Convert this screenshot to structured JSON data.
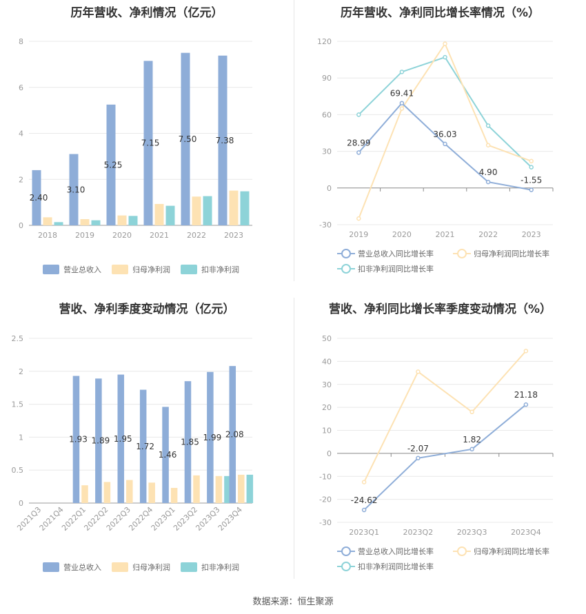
{
  "source_label": "数据来源：恒生聚源",
  "chart_data": [
    {
      "id": "annual-revenue-profit",
      "type": "bar",
      "title": "历年营收、净利情况（亿元）",
      "categories": [
        "2018",
        "2019",
        "2020",
        "2021",
        "2022",
        "2023"
      ],
      "ylim": [
        0,
        8
      ],
      "yticks": [
        0,
        2,
        4,
        6,
        8
      ],
      "series": [
        {
          "name": "营业总收入",
          "color": "#8eadd8",
          "values": [
            2.4,
            3.1,
            5.25,
            7.15,
            7.5,
            7.38
          ]
        },
        {
          "name": "归母净利润",
          "color": "#fde2b3",
          "values": [
            0.35,
            0.27,
            0.43,
            0.93,
            1.25,
            1.51
          ]
        },
        {
          "name": "扣非净利润",
          "color": "#8dd3d8",
          "values": [
            0.14,
            0.22,
            0.41,
            0.85,
            1.27,
            1.48
          ]
        }
      ],
      "data_labels": [
        "2.40",
        "3.10",
        "5.25",
        "7.15",
        "7.50",
        "7.38"
      ],
      "legend_position": "bottom",
      "grid": true
    },
    {
      "id": "annual-growth",
      "type": "line",
      "title": "历年营收、净利同比增长率情况（%）",
      "categories": [
        "2019",
        "2020",
        "2021",
        "2022",
        "2023"
      ],
      "ylim": [
        -30,
        120
      ],
      "yticks": [
        -30,
        0,
        30,
        60,
        90,
        120
      ],
      "series": [
        {
          "name": "营业总收入同比增长率",
          "color": "#8eadd8",
          "values": [
            28.99,
            69.41,
            36.03,
            4.9,
            -1.55
          ]
        },
        {
          "name": "归母净利润同比增长率",
          "color": "#fde2b3",
          "values": [
            -25.0,
            65.0,
            118.0,
            35.0,
            22.0
          ]
        },
        {
          "name": "扣非净利润同比增长率",
          "color": "#8dd3d8",
          "values": [
            60.0,
            95.0,
            107.0,
            51.0,
            17.0
          ]
        }
      ],
      "data_labels": [
        "28.99",
        "69.41",
        "36.03",
        "4.90",
        "-1.55"
      ],
      "legend_position": "bottom",
      "grid": true
    },
    {
      "id": "quarterly-revenue-profit",
      "type": "bar",
      "title": "营收、净利季度变动情况（亿元）",
      "categories": [
        "2021Q3",
        "2021Q4",
        "2022Q1",
        "2022Q2",
        "2022Q3",
        "2022Q4",
        "2023Q1",
        "2023Q2",
        "2023Q3",
        "2023Q4"
      ],
      "ylim": [
        0,
        2.5
      ],
      "yticks": [
        0,
        0.5,
        1,
        1.5,
        2,
        2.5
      ],
      "series": [
        {
          "name": "营业总收入",
          "color": "#8eadd8",
          "values": [
            null,
            null,
            1.93,
            1.89,
            1.95,
            1.72,
            1.46,
            1.85,
            1.99,
            2.08
          ]
        },
        {
          "name": "归母净利润",
          "color": "#fde2b3",
          "values": [
            null,
            null,
            0.27,
            0.32,
            0.35,
            0.31,
            0.23,
            0.42,
            0.41,
            0.43
          ]
        },
        {
          "name": "扣非净利润",
          "color": "#8dd3d8",
          "values": [
            null,
            null,
            null,
            null,
            null,
            null,
            null,
            null,
            0.41,
            0.43
          ]
        }
      ],
      "data_labels": [
        "",
        "",
        "1.93",
        "1.89",
        "1.95",
        "1.72",
        "1.46",
        "1.85",
        "1.99",
        "2.08"
      ],
      "legend_position": "bottom",
      "grid": true
    },
    {
      "id": "quarterly-growth",
      "type": "line",
      "title": "营收、净利同比增长率季度变动情况（%）",
      "categories": [
        "2023Q1",
        "2023Q2",
        "2023Q3",
        "2023Q4"
      ],
      "ylim": [
        -30,
        50
      ],
      "yticks": [
        -30,
        -20,
        -10,
        0,
        10,
        20,
        30,
        40,
        50
      ],
      "series": [
        {
          "name": "营业总收入同比增长率",
          "color": "#8eadd8",
          "values": [
            -24.62,
            -2.07,
            1.82,
            21.18
          ]
        },
        {
          "name": "归母净利润同比增长率",
          "color": "#fde2b3",
          "values": [
            -12.5,
            35.5,
            18.0,
            44.5
          ]
        },
        {
          "name": "扣非净利润同比增长率",
          "color": "#8dd3d8",
          "values": [
            null,
            null,
            null,
            null
          ]
        }
      ],
      "data_labels": [
        "-24.62",
        "-2.07",
        "1.82",
        "21.18"
      ],
      "legend_position": "bottom",
      "grid": true
    }
  ]
}
